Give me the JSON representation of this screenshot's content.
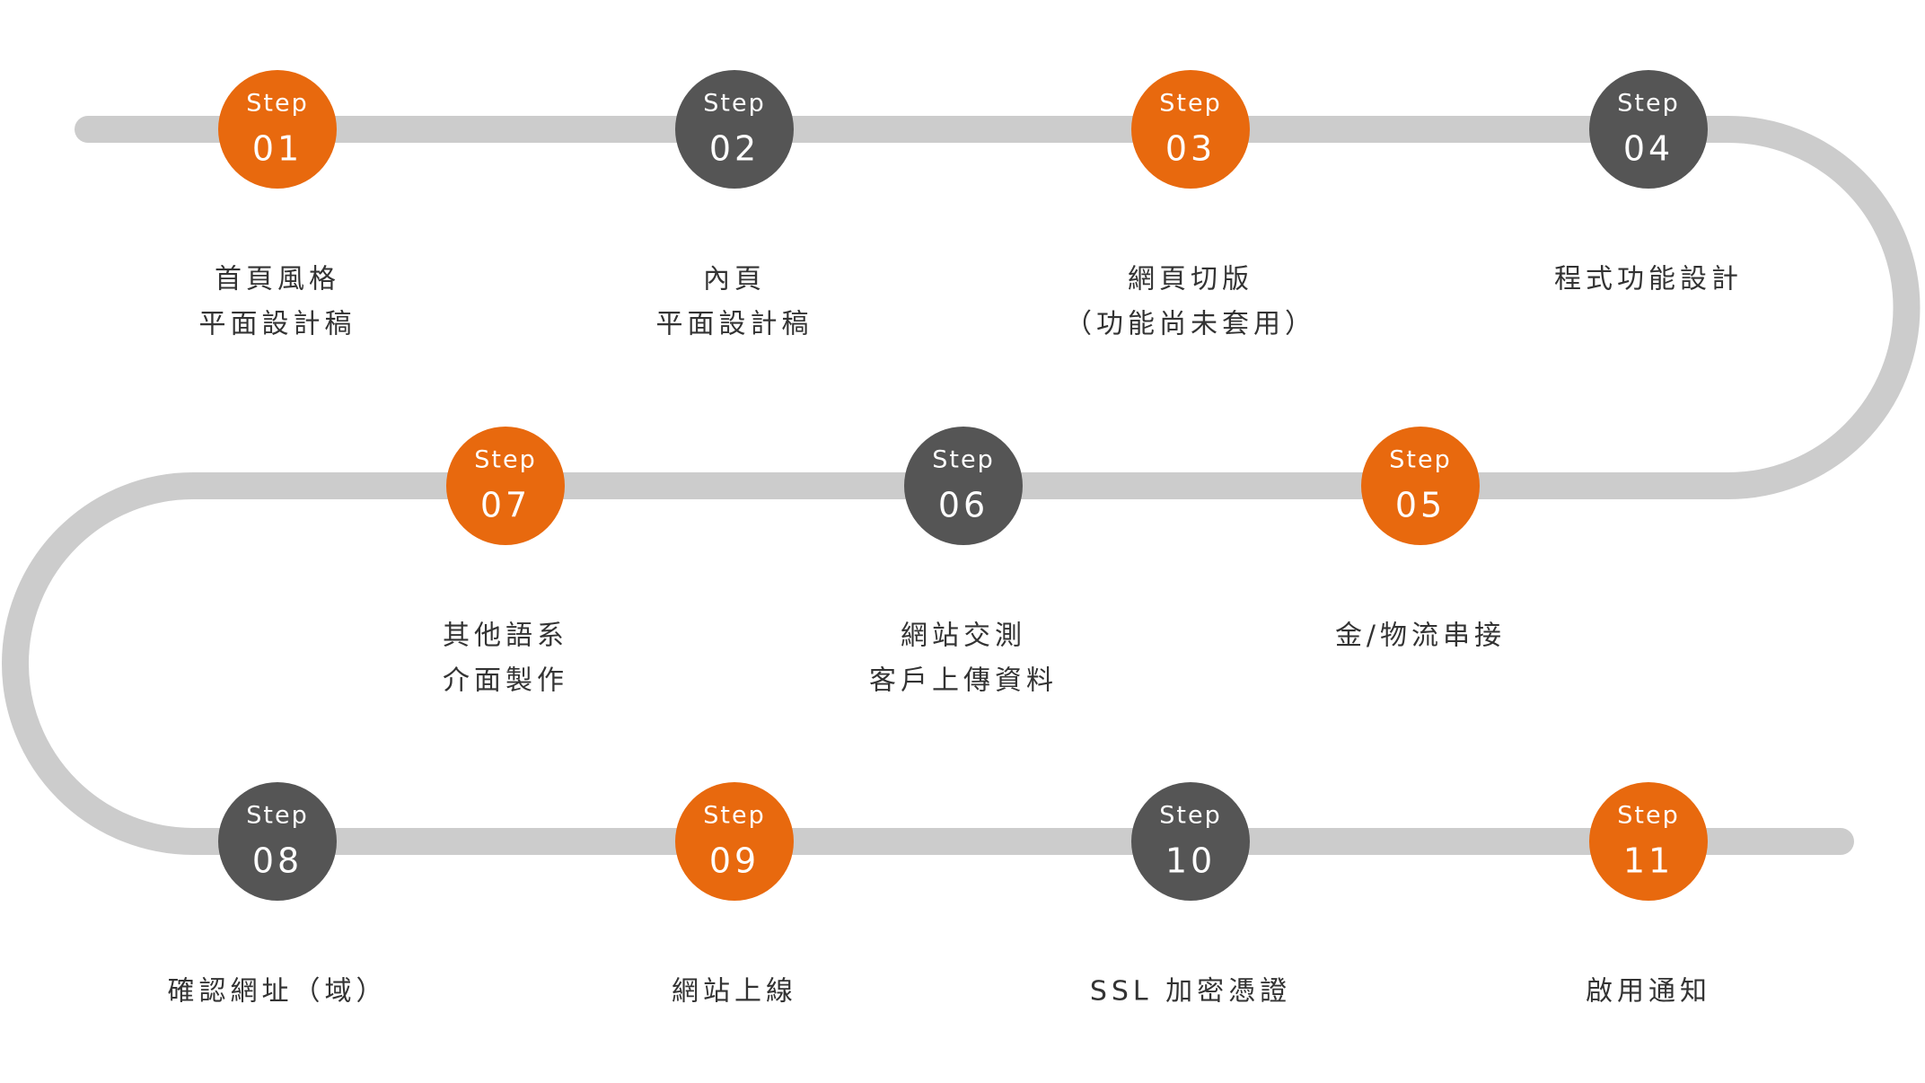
{
  "steps": [
    {
      "label": "Step",
      "number": "01",
      "color": "#e8690e",
      "text": [
        "首頁風格",
        "平面設計稿"
      ]
    },
    {
      "label": "Step",
      "number": "02",
      "color": "#555555",
      "text": [
        "內頁",
        "平面設計稿"
      ]
    },
    {
      "label": "Step",
      "number": "03",
      "color": "#e8690e",
      "text": [
        "網頁切版",
        "（功能尚未套用）"
      ]
    },
    {
      "label": "Step",
      "number": "04",
      "color": "#555555",
      "text": [
        "程式功能設計"
      ]
    },
    {
      "label": "Step",
      "number": "05",
      "color": "#e8690e",
      "text": [
        "金/物流串接"
      ]
    },
    {
      "label": "Step",
      "number": "06",
      "color": "#555555",
      "text": [
        "網站交測",
        "客戶上傳資料"
      ]
    },
    {
      "label": "Step",
      "number": "07",
      "color": "#e8690e",
      "text": [
        "其他語系",
        "介面製作"
      ]
    },
    {
      "label": "Step",
      "number": "08",
      "color": "#555555",
      "text": [
        "確認網址（域）"
      ]
    },
    {
      "label": "Step",
      "number": "09",
      "color": "#e8690e",
      "text": [
        "網站上線"
      ]
    },
    {
      "label": "Step",
      "number": "10",
      "color": "#555555",
      "text": [
        "SSL 加密憑證"
      ]
    },
    {
      "label": "Step",
      "number": "11",
      "color": "#e8690e",
      "text": [
        "啟用通知"
      ]
    }
  ]
}
